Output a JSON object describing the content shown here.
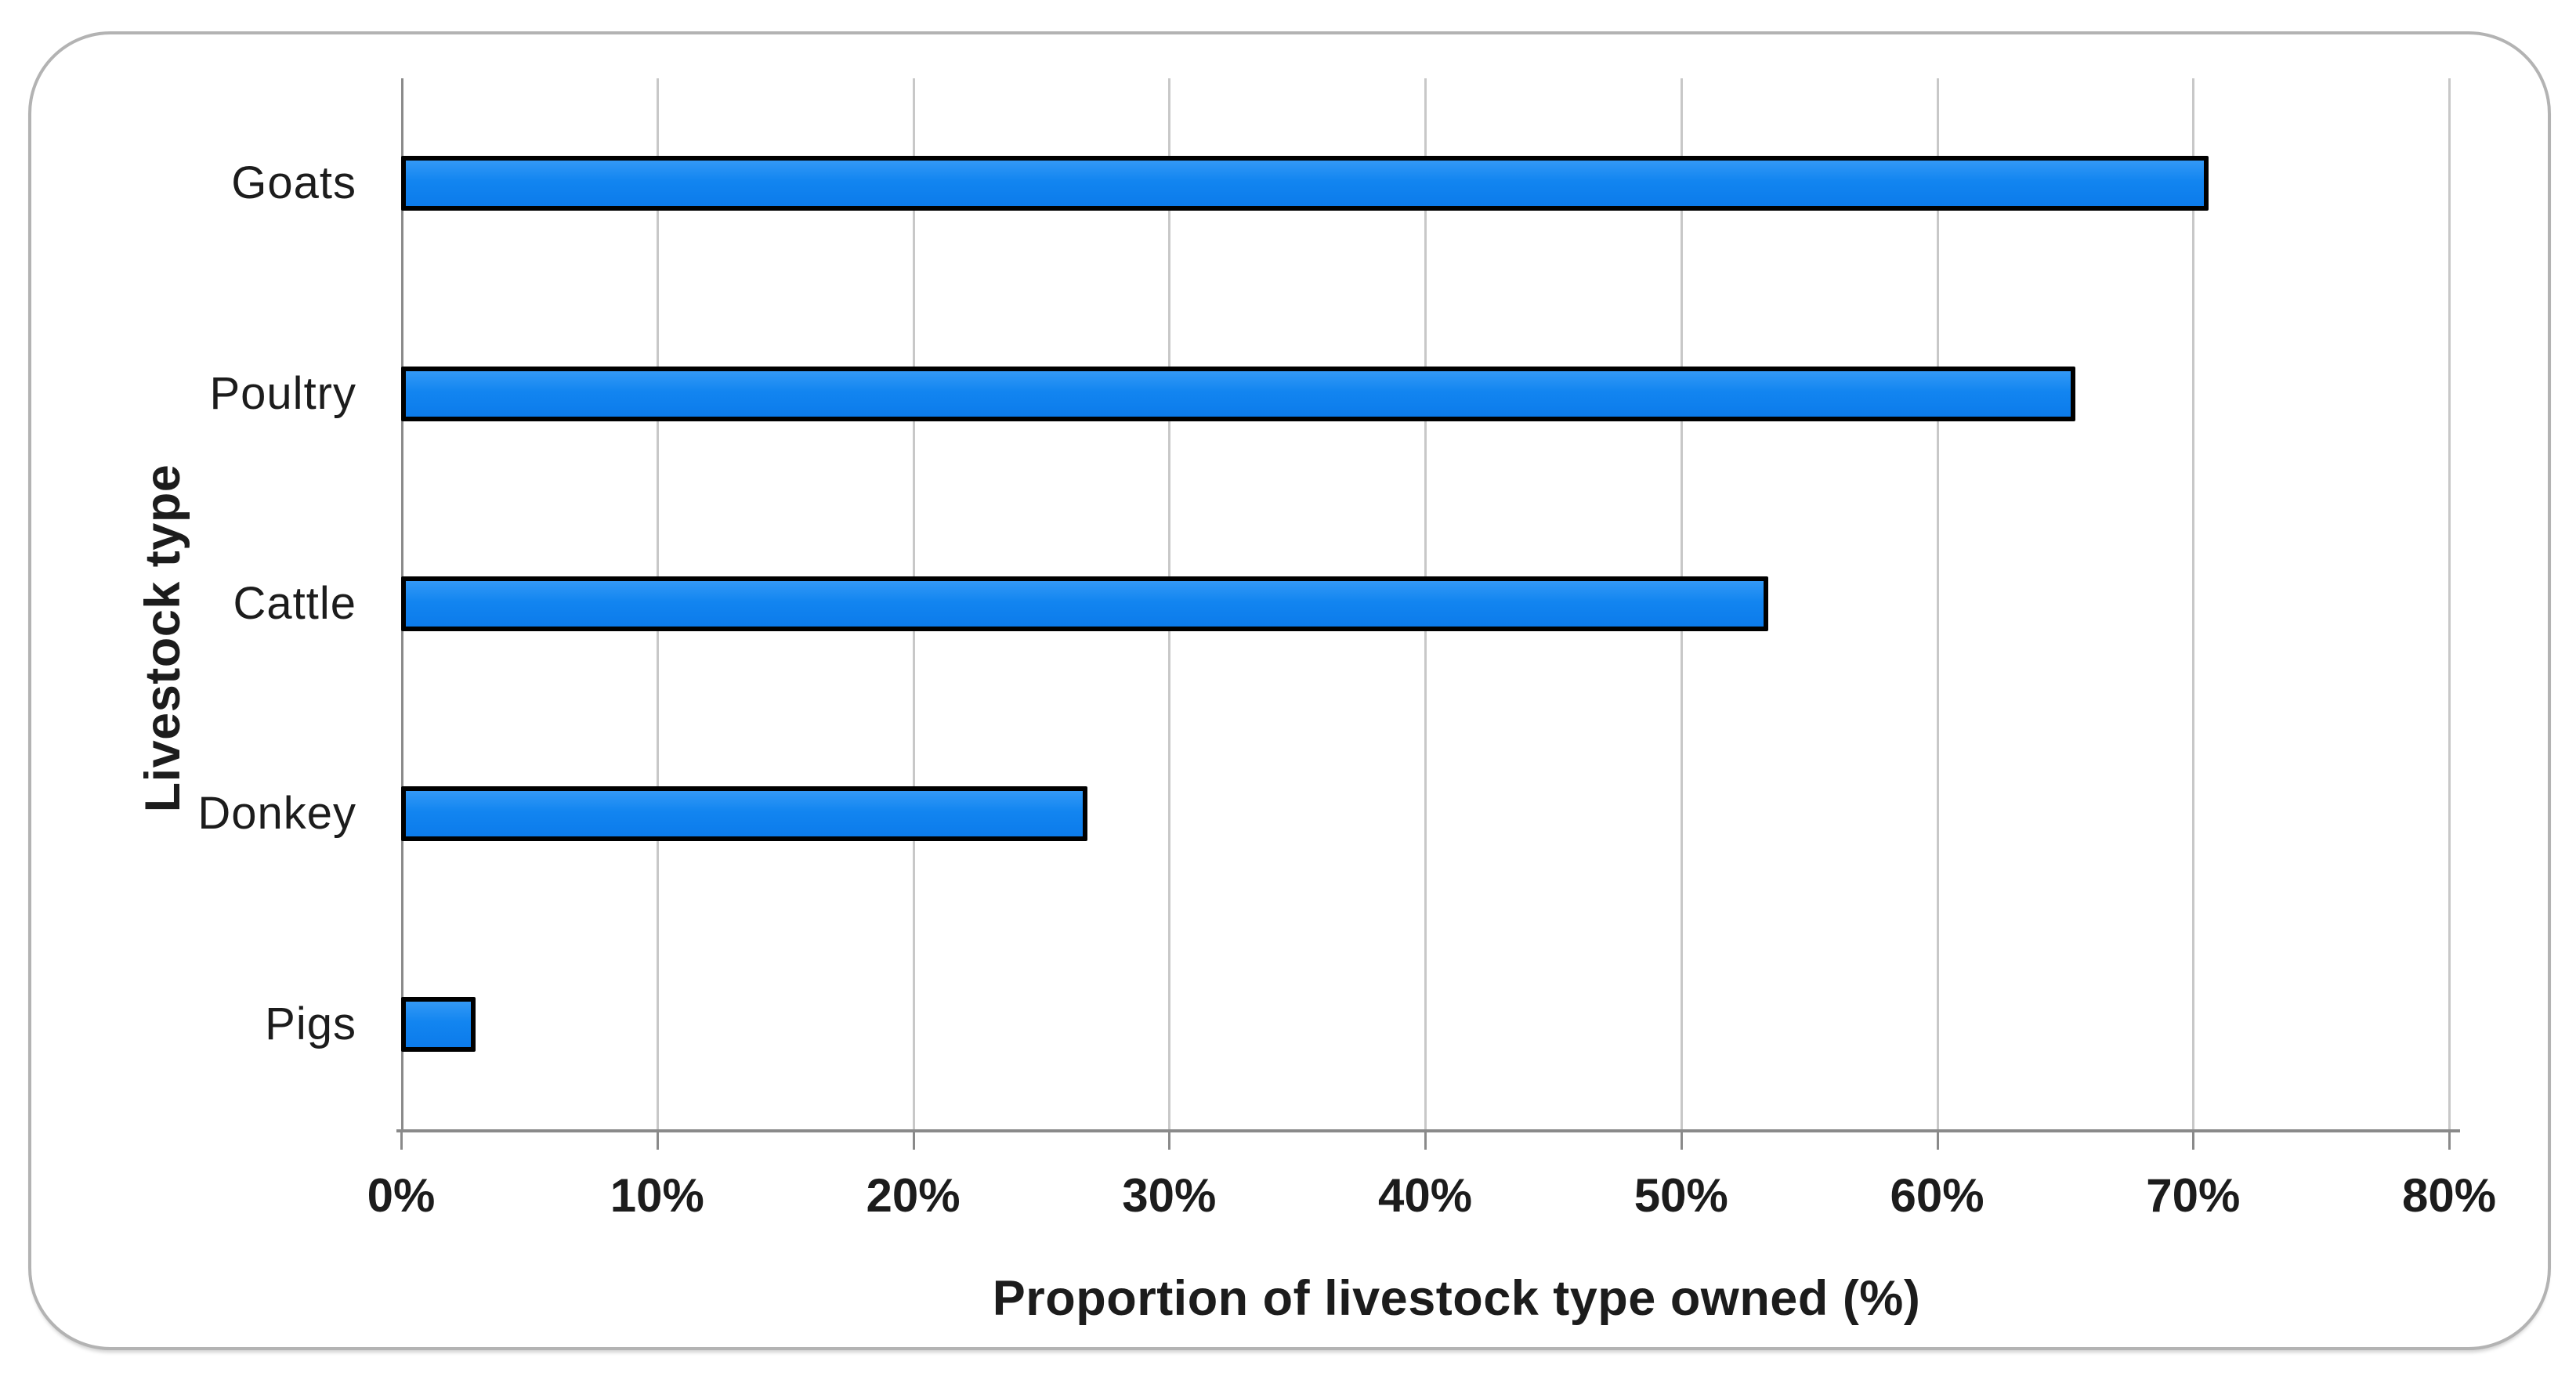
{
  "figure": {
    "background": "#ffffff",
    "frame_border_color": "#b3b3b3"
  },
  "chart_data": {
    "type": "bar",
    "orientation": "horizontal",
    "title": "",
    "categories": [
      "Goats",
      "Poultry",
      "Cattle",
      "Donkey",
      "Pigs"
    ],
    "values": [
      70.6,
      65.4,
      53.4,
      26.8,
      2.9
    ],
    "xlabel": "Proportion of livestock type owned (%)",
    "ylabel": "Livestock type",
    "xlim": [
      0,
      80
    ],
    "xtick_step": 10,
    "xtick_labels": [
      "0%",
      "10%",
      "20%",
      "30%",
      "40%",
      "50%",
      "60%",
      "70%",
      "80%"
    ],
    "grid": true,
    "legend": "none",
    "colors": {
      "bar_fill": "#1285f0",
      "bar_fill_light": "#3399f6",
      "bar_fill_dark": "#0c7beb",
      "bar_border": "#000000",
      "gridline": "#c8c8c8",
      "axis_line": "#8a8a8a",
      "text": "#1c1c1c"
    }
  }
}
